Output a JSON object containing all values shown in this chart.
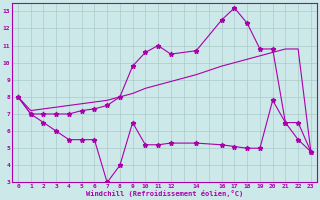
{
  "xlabel": "Windchill (Refroidissement éolien,°C)",
  "background_color": "#cce8e8",
  "grid_color": "#aacccc",
  "line_color": "#aa00aa",
  "xlim": [
    -0.5,
    23.5
  ],
  "ylim": [
    3,
    13.5
  ],
  "xtick_positions": [
    0,
    1,
    2,
    3,
    4,
    5,
    6,
    7,
    8,
    9,
    10,
    11,
    12,
    14,
    16,
    17,
    18,
    19,
    20,
    21,
    22,
    23
  ],
  "xtick_labels": [
    "0",
    "1",
    "2",
    "3",
    "4",
    "5",
    "6",
    "7",
    "8",
    "9",
    "10",
    "11",
    "12",
    "14",
    "16",
    "17",
    "18",
    "19",
    "20",
    "21",
    "22",
    "23"
  ],
  "ytick_positions": [
    3,
    4,
    5,
    6,
    7,
    8,
    9,
    10,
    11,
    12,
    13
  ],
  "ytick_labels": [
    "3",
    "4",
    "5",
    "6",
    "7",
    "8",
    "9",
    "10",
    "11",
    "12",
    "13"
  ],
  "line1_x": [
    0,
    1,
    2,
    3,
    4,
    5,
    6,
    7,
    8,
    9,
    10,
    11,
    12,
    14,
    16,
    17,
    18,
    19,
    20,
    21,
    22,
    23
  ],
  "line1_y": [
    8.0,
    7.0,
    6.5,
    6.0,
    5.5,
    5.5,
    5.5,
    3.0,
    4.0,
    6.5,
    5.2,
    5.2,
    5.3,
    5.3,
    5.2,
    5.1,
    5.0,
    5.0,
    7.8,
    6.5,
    5.5,
    4.8
  ],
  "line2_x": [
    0,
    1,
    2,
    3,
    4,
    5,
    6,
    7,
    8,
    9,
    10,
    11,
    12,
    14,
    16,
    17,
    18,
    19,
    20,
    21,
    22,
    23
  ],
  "line2_y": [
    8.0,
    7.0,
    7.0,
    7.0,
    7.0,
    7.2,
    7.3,
    7.5,
    8.0,
    9.8,
    10.6,
    11.0,
    10.5,
    10.7,
    12.5,
    13.2,
    12.3,
    10.8,
    10.8,
    6.5,
    6.5,
    4.8
  ],
  "line3_x": [
    0,
    1,
    2,
    3,
    4,
    5,
    6,
    7,
    8,
    9,
    10,
    11,
    12,
    14,
    16,
    17,
    18,
    19,
    20,
    21,
    22,
    23
  ],
  "line3_y": [
    8.0,
    7.2,
    7.3,
    7.4,
    7.5,
    7.6,
    7.7,
    7.8,
    8.0,
    8.2,
    8.5,
    8.7,
    8.9,
    9.3,
    9.8,
    10.0,
    10.2,
    10.4,
    10.6,
    10.8,
    10.8,
    4.8
  ]
}
